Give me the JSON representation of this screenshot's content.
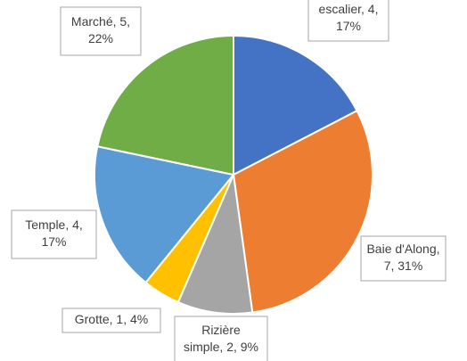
{
  "chart_data": {
    "type": "pie",
    "values": [
      4,
      7,
      2,
      1,
      4,
      5
    ],
    "value_labels": [
      [
        "escalier, 4,",
        "17%"
      ],
      [
        "Baie d'Along,",
        "7, 31%"
      ],
      [
        "Rizière",
        "simple, 2, 9%"
      ],
      [
        "Grotte, 1, 4%"
      ],
      [
        "Temple, 4,",
        "17%"
      ],
      [
        "Marché, 5,",
        "22%"
      ]
    ],
    "colors": [
      "#4472c4",
      "#ed7d31",
      "#a5a5a5",
      "#ffc000",
      "#5b9bd5",
      "#70ad47"
    ]
  }
}
